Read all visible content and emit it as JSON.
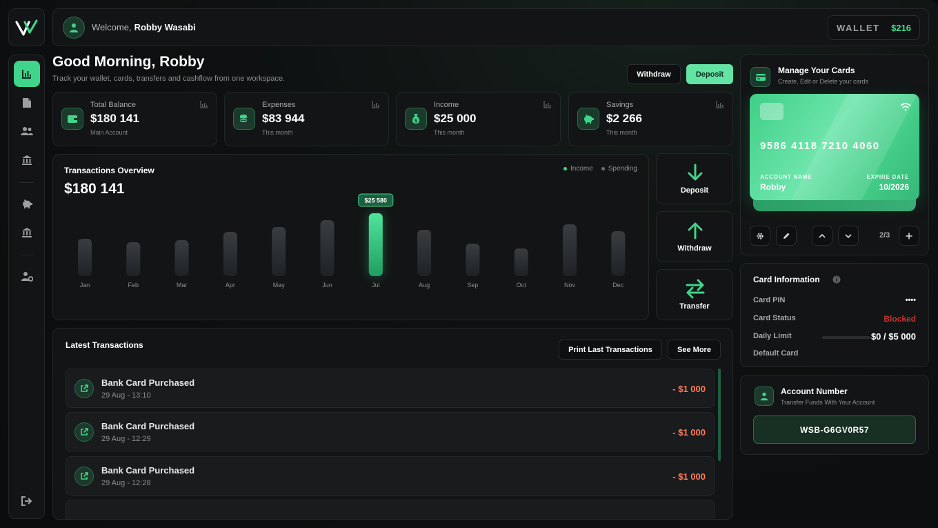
{
  "header": {
    "welcome_label": "Welcome,",
    "user_name": "Robby Wasabi",
    "wallet_label": "WALLET",
    "wallet_value": "$216"
  },
  "sidebar": {
    "items": [
      {
        "name": "dashboard",
        "icon": "chart-icon",
        "active": true
      },
      {
        "name": "documents",
        "icon": "document-icon"
      },
      {
        "name": "users",
        "icon": "users-icon"
      },
      {
        "name": "bank",
        "icon": "bank-icon"
      },
      {
        "name": "savings",
        "icon": "piggy-bank-icon"
      },
      {
        "name": "bank-2",
        "icon": "bank-icon"
      },
      {
        "name": "user-settings",
        "icon": "user-gear-icon"
      },
      {
        "name": "logout",
        "icon": "logout-icon"
      }
    ]
  },
  "greeting": {
    "title": "Good Morning, Robby",
    "subtitle": "Track your wallet, cards, transfers and cashflow from one workspace.",
    "withdraw_label": "Withdraw",
    "deposit_label": "Deposit"
  },
  "stats": [
    {
      "title": "Total Balance",
      "value": "$180 141",
      "sub": "Main Account",
      "icon": "wallet-icon"
    },
    {
      "title": "Expenses",
      "value": "$83 944",
      "sub": "This month",
      "icon": "coins-icon"
    },
    {
      "title": "Income",
      "value": "$25 000",
      "sub": "This month",
      "icon": "money-bag-icon"
    },
    {
      "title": "Savings",
      "value": "$2 266",
      "sub": "This month",
      "icon": "piggy-bank-icon"
    }
  ],
  "overview": {
    "title": "Transactions Overview",
    "value": "$180 141",
    "legend_income": "Income",
    "legend_spending": "Spending",
    "colors": {
      "income": "#3fd58a",
      "spending": "#6b6f72"
    }
  },
  "chart_data": {
    "type": "bar",
    "categories": [
      "Jan",
      "Feb",
      "Mar",
      "Apr",
      "May",
      "Jun",
      "Jul",
      "Aug",
      "Sep",
      "Oct",
      "Nov",
      "Dec"
    ],
    "values": [
      54,
      49,
      52,
      64,
      71,
      81,
      91,
      67,
      47,
      40,
      75,
      65
    ],
    "highlight_index": 6,
    "highlight_label": "$25 580"
  },
  "actions": {
    "deposit": "Deposit",
    "withdraw": "Withdraw",
    "transfer": "Transfer"
  },
  "latest": {
    "title": "Latest Transactions",
    "print_label": "Print Last Transactions",
    "see_more_label": "See More",
    "items": [
      {
        "name": "Bank Card Purchased",
        "date": "29 Aug - 13:10",
        "amount": "- $1 000"
      },
      {
        "name": "Bank Card Purchased",
        "date": "29 Aug - 12:29",
        "amount": "- $1 000"
      },
      {
        "name": "Bank Card Purchased",
        "date": "29 Aug - 12:28",
        "amount": "- $1 000"
      }
    ]
  },
  "cards": {
    "title": "Manage Your Cards",
    "subtitle": "Create, Edit or Delete your cards",
    "card_number": "9586 4118 7210 4060",
    "account_name_label": "ACCOUNT NAME",
    "account_name": "Robby",
    "expire_label": "EXPIRE DATE",
    "expire": "10/2026",
    "pager": "2/3"
  },
  "card_info": {
    "title": "Card Information",
    "pin_label": "Card PIN",
    "pin_value": "••••",
    "status_label": "Card Status",
    "status_value": "Blocked",
    "limit_label": "Daily Limit",
    "limit_value": "$0 / $5 000",
    "default_label": "Default Card"
  },
  "account": {
    "title": "Account Number",
    "subtitle": "Transfer Funds With Your Account",
    "number": "WSB-G6GV0R57"
  }
}
